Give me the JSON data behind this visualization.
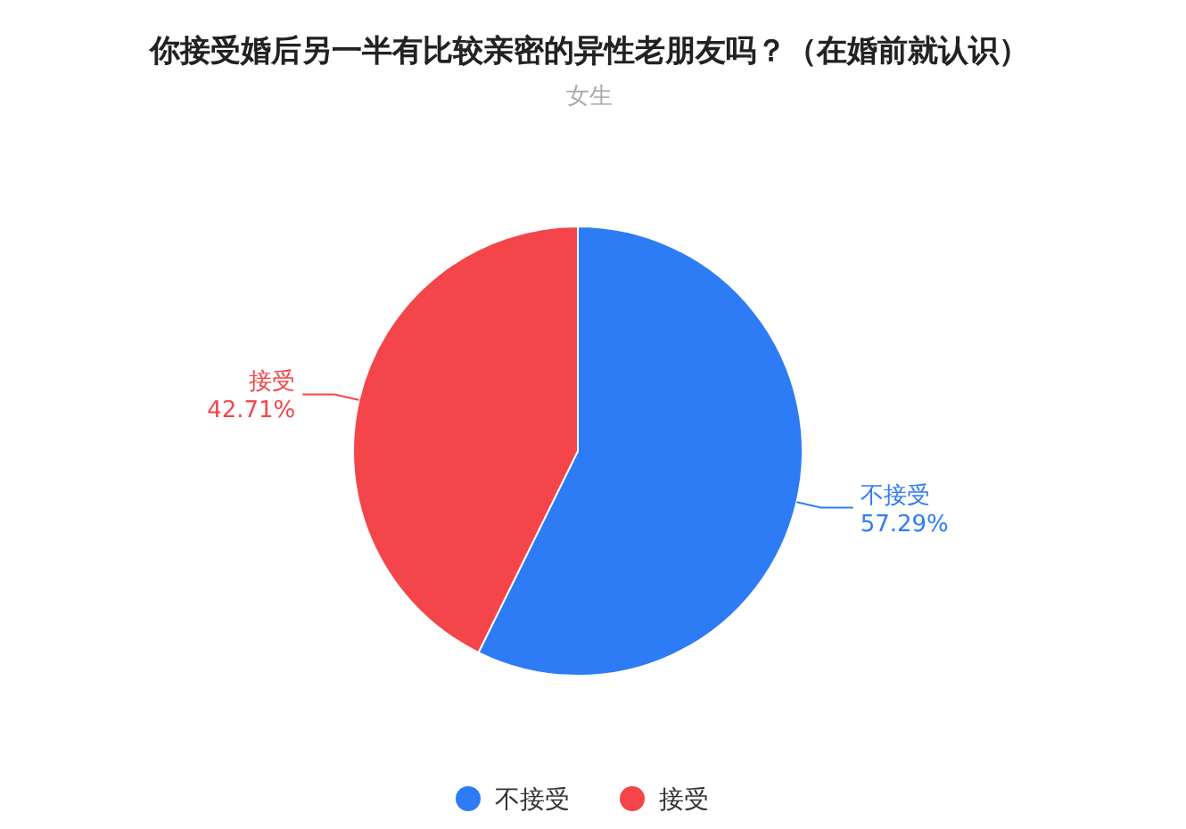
{
  "chart_data": {
    "type": "pie",
    "title": "你接受婚后另一半有比较亲密的异性老朋友吗？（在婚前就认识）",
    "subtitle": "女生",
    "categories": [
      "不接受",
      "接受"
    ],
    "values": [
      57.29,
      42.71
    ],
    "value_labels": [
      "57.29%",
      "42.71%"
    ],
    "colors": [
      "#2d7cf6",
      "#f4454a"
    ],
    "legend": "bottom"
  }
}
